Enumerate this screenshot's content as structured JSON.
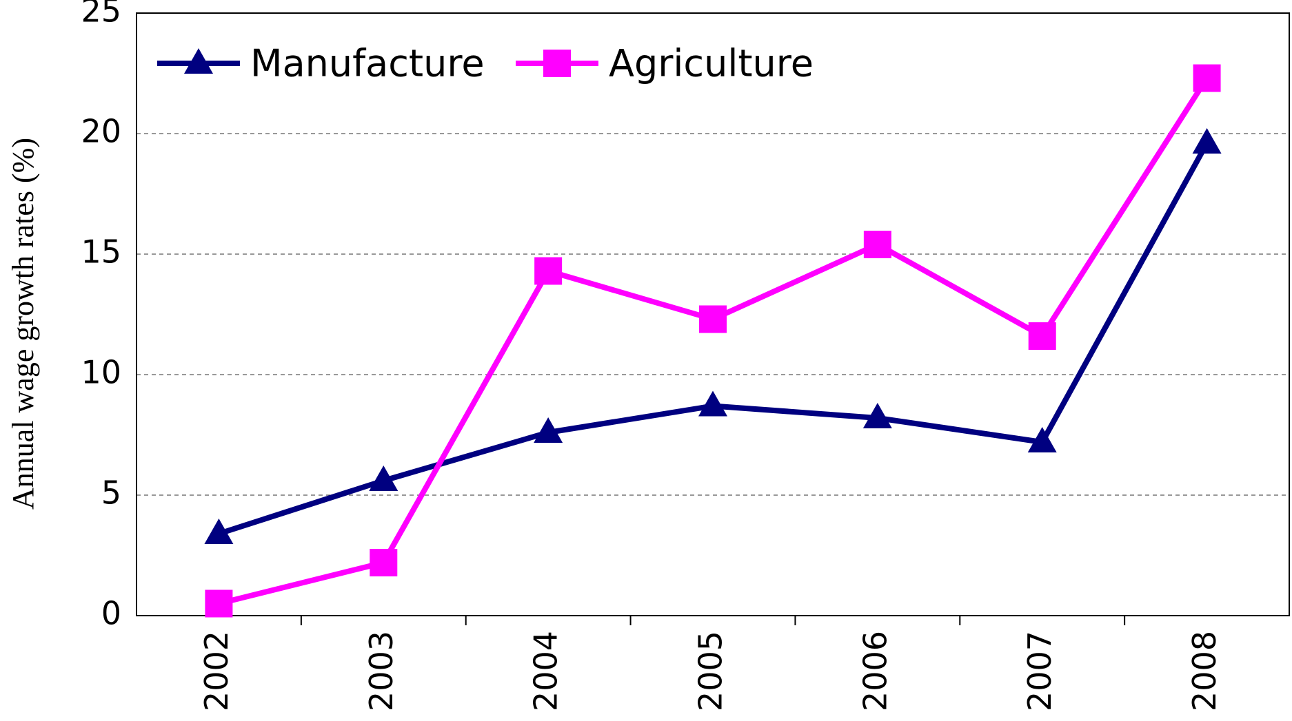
{
  "chart_data": {
    "type": "line",
    "y_label": "Annual wage growth rates (%)",
    "categories": [
      "2002",
      "2003",
      "2004",
      "2005",
      "2006",
      "2007",
      "2008"
    ],
    "series": [
      {
        "name": "Manufacture",
        "color": "#000080",
        "marker": "triangle",
        "values": [
          3.4,
          5.6,
          7.6,
          8.7,
          8.2,
          7.2,
          19.6
        ]
      },
      {
        "name": "Agriculture",
        "color": "#ff00ff",
        "marker": "square",
        "values": [
          0.5,
          2.2,
          14.3,
          12.3,
          15.4,
          11.6,
          22.3
        ]
      }
    ],
    "ylim": [
      0,
      25
    ],
    "yticks": [
      0,
      5,
      10,
      15,
      20,
      25
    ],
    "grid": true,
    "legend": "upper left"
  }
}
